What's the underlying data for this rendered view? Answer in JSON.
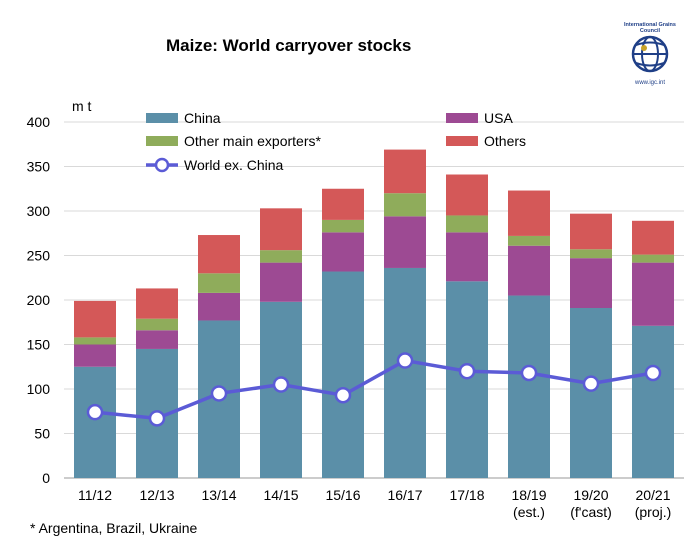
{
  "chart_data": {
    "type": "bar",
    "stacked": true,
    "title": "Maize: World carryover stocks",
    "ylabel": "m t",
    "ylim": [
      0,
      400
    ],
    "yticks": [
      0,
      50,
      100,
      150,
      200,
      250,
      300,
      350,
      400
    ],
    "grid": true,
    "legend_placement": "top",
    "categories": [
      "11/12",
      "12/13",
      "13/14",
      "14/15",
      "15/16",
      "16/17",
      "17/18",
      "18/19\n(est.)",
      "19/20\n(f'cast)",
      "20/21\n(proj.)"
    ],
    "series": [
      {
        "name": "China",
        "color": "#5b8fa8",
        "values": [
          125,
          145,
          177,
          198,
          232,
          236,
          221,
          205,
          191,
          171
        ]
      },
      {
        "name": "USA",
        "color": "#9d4a93",
        "values": [
          25,
          21,
          31,
          44,
          44,
          58,
          55,
          56,
          56,
          71
        ]
      },
      {
        "name": "Other main exporters*",
        "color": "#8fac5b",
        "values": [
          8,
          13,
          22,
          14,
          14,
          26,
          19,
          11,
          10,
          9
        ]
      },
      {
        "name": "Others",
        "color": "#d45858",
        "values": [
          41,
          34,
          43,
          47,
          35,
          49,
          46,
          51,
          40,
          38
        ]
      }
    ],
    "line_series": {
      "name": "World ex. China",
      "color": "#5b5bd6",
      "values": [
        74,
        67,
        95,
        105,
        93,
        132,
        120,
        118,
        106,
        118
      ]
    },
    "footnote": "* Argentina, Brazil, Ukraine"
  },
  "logo": {
    "org": "International Grains Council",
    "web": "www.igc.int",
    "colors": {
      "primary": "#1f3f87"
    }
  }
}
